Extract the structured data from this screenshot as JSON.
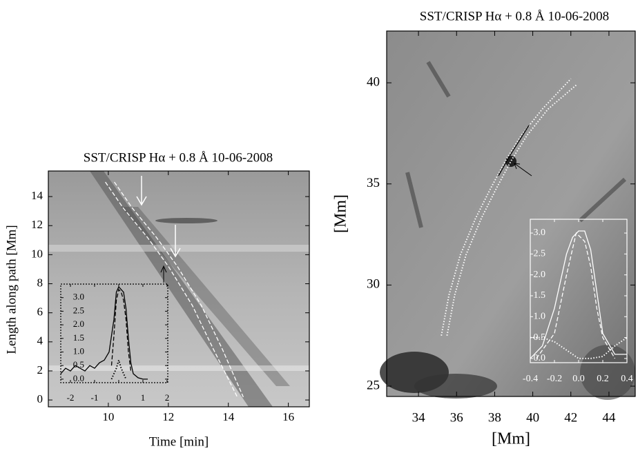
{
  "chart_data": [
    {
      "type": "line",
      "title": "SST/CRISP  Hα + 0.8 Å  10-06-2008",
      "x_label": "Time [min]",
      "y_label": "Length along path [Mm]",
      "xlim": [
        8.0,
        16.7
      ],
      "ylim": [
        -0.47,
        15.76
      ],
      "xticks": [
        10,
        12,
        14,
        16
      ],
      "yticks": [
        0,
        2,
        4,
        6,
        8,
        10,
        12,
        14
      ],
      "series": [
        {
          "color": "#ffffff",
          "style": "dashed",
          "x": [
            9.9,
            10.5,
            11.3,
            12.0,
            12.8,
            13.5,
            14.3
          ],
          "y": [
            15.0,
            13.2,
            11.2,
            9.2,
            6.5,
            3.5,
            0.2
          ]
        },
        {
          "color": "#ffffff",
          "style": "dashed",
          "x": [
            10.2,
            10.8,
            11.6,
            12.3,
            13.1,
            13.8,
            14.5
          ],
          "y": [
            15.0,
            13.2,
            11.2,
            9.2,
            6.5,
            3.5,
            0.2
          ]
        }
      ]
    },
    {
      "type": "line",
      "xlim": [
        -2.4,
        2.03
      ],
      "ylim": [
        -0.13,
        3.5
      ],
      "xticks": [
        -2,
        -1,
        0,
        1,
        2
      ],
      "yticks": [
        {
          "value": 0,
          "label": "0.0"
        },
        0.5,
        {
          "value": 1,
          "label": "1.0"
        },
        1.5,
        {
          "value": 2,
          "label": "2.0"
        },
        2.5,
        {
          "value": 3,
          "label": "3.0"
        }
      ],
      "series": [
        {
          "color": "#000000",
          "style": "solid",
          "x": [
            -2.4,
            -2.2,
            -2.0,
            -1.8,
            -1.6,
            -1.4,
            -1.2,
            -1.0,
            -0.8,
            -0.6,
            -0.4,
            -0.2,
            -0.1,
            0,
            0.1,
            0.2,
            0.3,
            0.4,
            0.5,
            0.6,
            0.8,
            1.0,
            1.2
          ],
          "y": [
            0.2,
            0.4,
            0.3,
            0.5,
            0.4,
            0.3,
            0.5,
            0.4,
            0.6,
            0.7,
            1.0,
            2.2,
            3.2,
            3.4,
            3.3,
            3.2,
            2.6,
            1.5,
            0.6,
            0.2,
            0.05,
            0,
            0
          ]
        },
        {
          "color": "#000000",
          "style": "dashed",
          "x": [
            -0.3,
            -0.2,
            -0.1,
            0,
            0.1,
            0.2,
            0.3,
            0.4,
            0.5
          ],
          "y": [
            0.5,
            1.6,
            2.9,
            3.3,
            3.2,
            2.9,
            2.2,
            1.0,
            0.3
          ]
        },
        {
          "color": "#000000",
          "style": "dotted",
          "x": [
            -0.3,
            -0.1,
            0,
            0.1,
            0.3
          ],
          "y": [
            0,
            0.4,
            0.7,
            0.4,
            0
          ]
        }
      ]
    },
    {
      "type": "line",
      "title": "SST/CRISP  Hα + 0.8 Å  10-06-2008",
      "x_label": "[Mm]",
      "y_label": "[Mm]",
      "xlim": [
        32.33,
        45.38
      ],
      "ylim": [
        24.49,
        42.56
      ],
      "xticks": [
        34,
        36,
        38,
        40,
        42,
        44
      ],
      "yticks": [
        25,
        30,
        35,
        40
      ],
      "series": [
        {
          "color": "#ffffff",
          "style": "dotted",
          "x": [
            35.2,
            35.6,
            36.2,
            37.0,
            37.8,
            38.6,
            39.4,
            40.5,
            42.0
          ],
          "y": [
            27.5,
            29.5,
            31.5,
            33.3,
            34.8,
            36.2,
            37.4,
            38.7,
            40.2
          ]
        },
        {
          "color": "#ffffff",
          "style": "dotted",
          "x": [
            35.5,
            35.9,
            36.5,
            37.3,
            38.1,
            38.9,
            39.7,
            40.8,
            42.3
          ],
          "y": [
            27.5,
            29.5,
            31.5,
            33.3,
            34.8,
            36.2,
            37.4,
            38.7,
            39.9
          ]
        },
        {
          "color": "#000000",
          "style": "solid",
          "x": [
            38.2,
            38.8,
            39.8
          ],
          "y": [
            35.4,
            36.4,
            37.9
          ]
        }
      ]
    },
    {
      "type": "line",
      "xlim": [
        -0.4,
        0.4
      ],
      "ylim": [
        -0.1,
        3.33
      ],
      "xticks": [
        -0.4,
        -0.2,
        {
          "value": 0,
          "label": "0.0"
        },
        0.2,
        0.4
      ],
      "yticks": [
        {
          "value": 0,
          "label": "0.0"
        },
        0.5,
        {
          "value": 1,
          "label": "1.0"
        },
        1.5,
        {
          "value": 2,
          "label": "2.0"
        },
        2.5,
        {
          "value": 3,
          "label": "3.0"
        }
      ],
      "series": [
        {
          "color": "#ffffff",
          "style": "solid",
          "x": [
            -0.4,
            -0.3,
            -0.2,
            -0.1,
            -0.05,
            0.0,
            0.05,
            0.1,
            0.15,
            0.2,
            0.3,
            0.4
          ],
          "y": [
            0,
            0.3,
            1.2,
            2.5,
            2.9,
            3.05,
            3.05,
            2.6,
            1.6,
            0.6,
            0.1,
            0.1
          ]
        },
        {
          "color": "#ffffff",
          "style": "dashed",
          "x": [
            -0.35,
            -0.2,
            -0.1,
            -0.02,
            0.05,
            0.1,
            0.15,
            0.2,
            0.3
          ],
          "y": [
            0,
            0.6,
            2.0,
            3.0,
            2.8,
            2.2,
            1.2,
            0.5,
            0
          ]
        },
        {
          "color": "#ffffff",
          "style": "dotted",
          "x": [
            -0.4,
            -0.3,
            -0.2,
            -0.1,
            0,
            0.1,
            0.2,
            0.3,
            0.4
          ],
          "y": [
            0.5,
            0.5,
            0.4,
            0.2,
            0,
            0,
            0.05,
            0.3,
            0.5
          ]
        }
      ]
    }
  ]
}
